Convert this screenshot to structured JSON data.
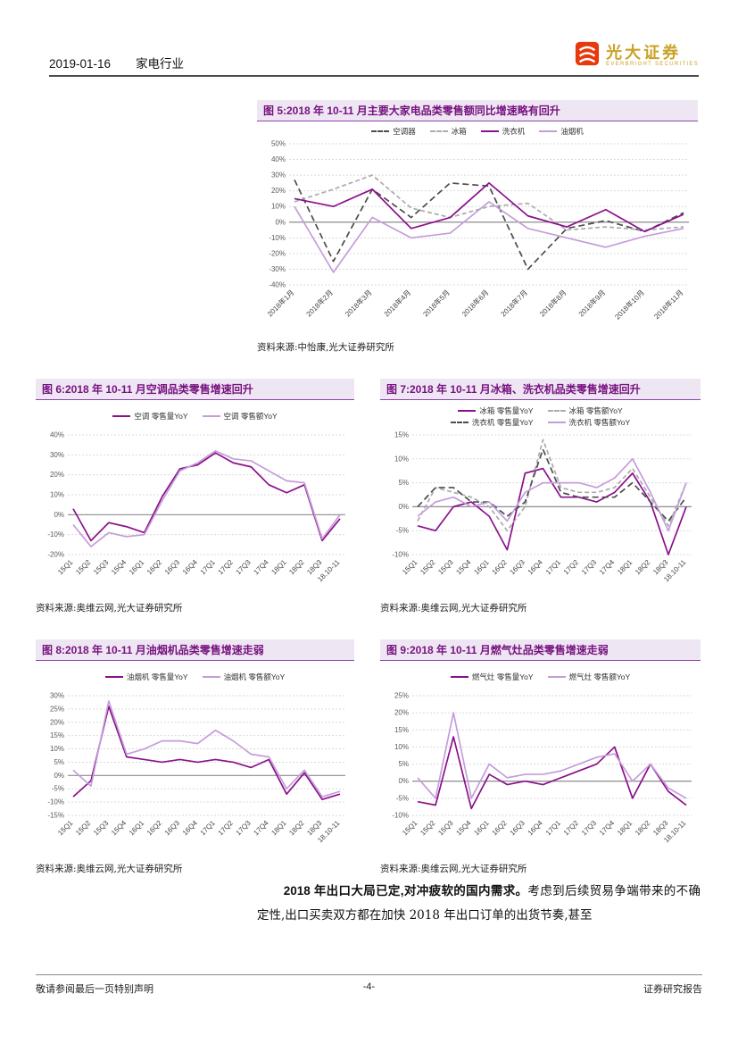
{
  "header": {
    "date": "2019-01-16",
    "industry": "家电行业",
    "logo": {
      "icon": "everbright-logo-icon",
      "brand_cn": "光大证券",
      "brand_en": "EVERBRIGHT SECURITIES"
    }
  },
  "colors": {
    "accent_purple": "#76127E",
    "title_bar_bg": "#EFE6F4",
    "series_dark_purple": "#8B108B",
    "series_light_purple": "#C49EDA",
    "series_dark_gray": "#4D4D4D",
    "series_light_gray": "#ABABAB",
    "logo_gold": "#C9A227",
    "logo_red": "#E8380D"
  },
  "chart_data": [
    {
      "type": "line",
      "title": "图 5:2018 年 10-11 月主要大家电品类零售额同比增速略有回升",
      "source": "资料来源:中怡康,光大证券研究所",
      "xlabel": "",
      "ylabel": "",
      "ylim": [
        -40,
        50
      ],
      "ystep": 10,
      "grid": true,
      "legend_position": "top",
      "categories": [
        "2018年1月",
        "2018年2月",
        "2018年3月",
        "2018年4月",
        "2018年5月",
        "2018年6月",
        "2018年7月",
        "2018年8月",
        "2018年9月",
        "2018年10月",
        "2018年11月"
      ],
      "series": [
        {
          "name": "空调器",
          "color": "#4D4D4D",
          "dash": "7,4",
          "values": [
            27,
            -25,
            21,
            3,
            25,
            23,
            -30,
            -4,
            1,
            -6,
            6
          ]
        },
        {
          "name": "冰箱",
          "color": "#ABABAB",
          "dash": "5,3",
          "values": [
            13,
            21,
            30,
            9,
            3,
            10,
            12,
            -5,
            -3,
            -5,
            -3
          ]
        },
        {
          "name": "洗衣机",
          "color": "#8B108B",
          "dash": null,
          "values": [
            15,
            10,
            21,
            -4,
            3,
            25,
            4,
            -3,
            8,
            -6,
            5
          ]
        },
        {
          "name": "油烟机",
          "color": "#C49EDA",
          "dash": null,
          "values": [
            10,
            -32,
            3,
            -10,
            -7,
            13,
            -4,
            -10,
            -16,
            -9,
            -4
          ]
        }
      ]
    },
    {
      "type": "line",
      "title": "图 6:2018 年 10-11 月空调品类零售增速回升",
      "source": "资料来源:奥维云网,光大证券研究所",
      "xlabel": "",
      "ylabel": "",
      "ylim": [
        -20,
        40
      ],
      "ystep": 10,
      "grid": true,
      "legend_position": "top",
      "categories": [
        "15Q1",
        "15Q2",
        "15Q3",
        "15Q4",
        "16Q1",
        "16Q2",
        "16Q3",
        "16Q4",
        "17Q1",
        "17Q2",
        "17Q3",
        "17Q4",
        "18Q1",
        "18Q2",
        "18Q3",
        "18.10-11"
      ],
      "series": [
        {
          "name": "空调 零售量YoY",
          "color": "#8B108B",
          "dash": null,
          "values": [
            3,
            -13,
            -4,
            -6,
            -9,
            9,
            23,
            25,
            31,
            26,
            24,
            15,
            11,
            15,
            -13,
            -2
          ]
        },
        {
          "name": "空调 零售额YoY",
          "color": "#C49EDA",
          "dash": null,
          "values": [
            -5,
            -16,
            -9,
            -11,
            -10,
            7,
            22,
            26,
            32,
            28,
            27,
            22,
            17,
            16,
            -12,
            0
          ]
        }
      ]
    },
    {
      "type": "line",
      "title": "图 7:2018 年 10-11 月冰箱、洗衣机品类零售增速回升",
      "source": "资料来源:奥维云网,光大证券研究所",
      "xlabel": "",
      "ylabel": "",
      "ylim": [
        -10,
        15
      ],
      "ystep": 5,
      "grid": true,
      "legend_position": "top",
      "categories": [
        "15Q1",
        "15Q2",
        "15Q3",
        "15Q4",
        "16Q1",
        "16Q2",
        "16Q3",
        "16Q4",
        "17Q1",
        "17Q2",
        "17Q3",
        "17Q4",
        "18Q1",
        "18Q2",
        "18Q3",
        "18.10-11"
      ],
      "series": [
        {
          "name": "冰箱 零售量YoY",
          "color": "#8B108B",
          "dash": null,
          "values": [
            -4,
            -5,
            0,
            1,
            -2,
            -9,
            7,
            8,
            2,
            2,
            1,
            3,
            7,
            1,
            -10,
            0
          ]
        },
        {
          "name": "冰箱 零售额YoY",
          "color": "#ABABAB",
          "dash": "5,3",
          "values": [
            -3,
            4,
            3,
            2,
            0,
            -5,
            0,
            14,
            4,
            3,
            3,
            4,
            8,
            2,
            -4,
            5
          ]
        },
        {
          "name": "洗衣机 零售量YoY",
          "color": "#4D4D4D",
          "dash": "7,4",
          "values": [
            0,
            4,
            4,
            1,
            1,
            -2,
            1,
            12,
            3,
            2,
            2,
            2,
            5,
            1,
            -3,
            2
          ]
        },
        {
          "name": "洗衣机 零售额YoY",
          "color": "#C49EDA",
          "dash": null,
          "values": [
            -2,
            1,
            2,
            0,
            1,
            -3,
            3,
            5,
            5,
            5,
            4,
            6,
            10,
            3,
            -5,
            5
          ]
        }
      ]
    },
    {
      "type": "line",
      "title": "图 8:2018 年 10-11 月油烟机品类零售增速走弱",
      "source": "资料来源:奥维云网,光大证券研究所",
      "xlabel": "",
      "ylabel": "",
      "ylim": [
        -15,
        30
      ],
      "ystep": 5,
      "grid": true,
      "legend_position": "top",
      "categories": [
        "15Q1",
        "15Q2",
        "15Q3",
        "15Q4",
        "16Q1",
        "16Q2",
        "16Q3",
        "16Q4",
        "17Q1",
        "17Q2",
        "17Q3",
        "17Q4",
        "18Q1",
        "18Q2",
        "18Q3",
        "18.10-11"
      ],
      "series": [
        {
          "name": "油烟机 零售量YoY",
          "color": "#8B108B",
          "dash": null,
          "values": [
            -8,
            -2,
            26,
            7,
            6,
            5,
            6,
            5,
            6,
            5,
            3,
            6,
            -7,
            1,
            -9,
            -7
          ]
        },
        {
          "name": "油烟机 零售额YoY",
          "color": "#C49EDA",
          "dash": null,
          "values": [
            2,
            -4,
            28,
            8,
            10,
            13,
            13,
            12,
            17,
            13,
            8,
            7,
            -5,
            2,
            -8,
            -6
          ]
        }
      ]
    },
    {
      "type": "line",
      "title": "图 9:2018 年 10-11 月燃气灶品类零售增速走弱",
      "source": "资料来源:奥维云网,光大证券研究所",
      "xlabel": "",
      "ylabel": "",
      "ylim": [
        -10,
        25
      ],
      "ystep": 5,
      "grid": true,
      "legend_position": "top",
      "categories": [
        "15Q1",
        "15Q2",
        "15Q3",
        "15Q4",
        "16Q1",
        "16Q2",
        "16Q3",
        "16Q4",
        "17Q1",
        "17Q2",
        "17Q3",
        "17Q4",
        "18Q1",
        "18Q2",
        "18Q3",
        "18.10-11"
      ],
      "series": [
        {
          "name": "燃气灶 零售量YoY",
          "color": "#8B108B",
          "dash": null,
          "values": [
            -6,
            -7,
            13,
            -8,
            2,
            -1,
            0,
            -1,
            1,
            3,
            5,
            10,
            -5,
            5,
            -3,
            -7
          ]
        },
        {
          "name": "燃气灶 零售额YoY",
          "color": "#C49EDA",
          "dash": null,
          "values": [
            1,
            -5,
            20,
            -5,
            5,
            1,
            2,
            2,
            3,
            5,
            7,
            8,
            0,
            5,
            -2,
            -5
          ]
        }
      ]
    }
  ],
  "body": {
    "bold": "2018 年出口大局已定,对冲疲软的国内需求。",
    "regular": "考虑到后续贸易争端带来的不确定性,出口买卖双方都在加快 2018 年出口订单的出货节奏,甚至"
  },
  "footer": {
    "left": "敬请参阅最后一页特别声明",
    "center": "-4-",
    "right": "证券研究报告"
  }
}
